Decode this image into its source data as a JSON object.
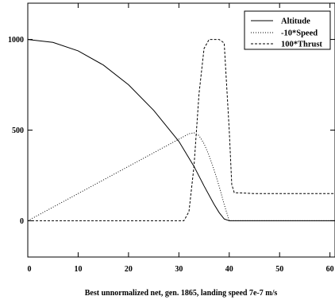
{
  "chart_data": {
    "type": "line",
    "title": "",
    "xlabel": "Best unnormalized net, gen. 1865, landing speed 7e-7 m/s",
    "ylabel": "",
    "xlim": [
      0,
      61
    ],
    "ylim": [
      -200,
      1200
    ],
    "x_ticks": [
      0,
      10,
      20,
      30,
      40,
      50,
      60
    ],
    "y_ticks": [
      0,
      500,
      1000
    ],
    "grid": false,
    "legend": "top-right",
    "series": [
      {
        "name": "Altitude",
        "style": "solid",
        "color": "#000000",
        "x": [
          0,
          5,
          10,
          15,
          20,
          25,
          30,
          33,
          35,
          37,
          38,
          39,
          40,
          45,
          50,
          55,
          60,
          61
        ],
        "y": [
          1000,
          984,
          937,
          859,
          750,
          609,
          438,
          300,
          192,
          90,
          45,
          10,
          0,
          0,
          0,
          0,
          0,
          0
        ]
      },
      {
        "name": "-10*Speed",
        "style": "dotted",
        "color": "#000000",
        "x": [
          0,
          5,
          10,
          15,
          20,
          25,
          30,
          32,
          33,
          34,
          35,
          36,
          37,
          38,
          39,
          40,
          45,
          50,
          55,
          60,
          61
        ],
        "y": [
          0,
          75,
          150,
          225,
          300,
          375,
          450,
          480,
          485,
          470,
          425,
          360,
          280,
          190,
          90,
          0,
          0,
          0,
          0,
          0,
          0
        ]
      },
      {
        "name": "100*Thrust",
        "style": "dashed",
        "color": "#000000",
        "x": [
          0,
          31,
          32,
          33,
          34,
          35,
          36,
          38,
          39,
          40,
          40.5,
          41,
          45,
          50,
          55,
          60,
          61
        ],
        "y": [
          0,
          0,
          50,
          300,
          700,
          950,
          1000,
          1000,
          980,
          500,
          200,
          155,
          150,
          150,
          150,
          150,
          150
        ]
      }
    ]
  }
}
